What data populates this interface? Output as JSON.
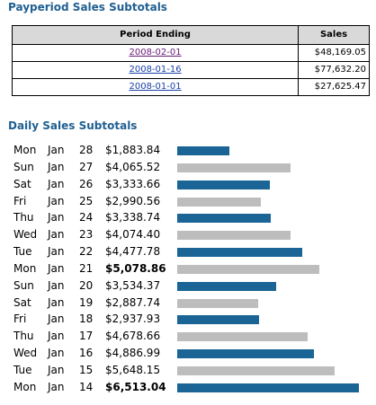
{
  "payperiod": {
    "title": "Payperiod Sales Subtotals",
    "headers": {
      "period": "Period Ending",
      "sales": "Sales"
    },
    "rows": [
      {
        "date": "2008-02-01",
        "sales": "$48,169.05",
        "visited": true
      },
      {
        "date": "2008-01-16",
        "sales": "$77,632.20",
        "visited": false
      },
      {
        "date": "2008-01-01",
        "sales": "$27,625.47",
        "visited": false
      }
    ]
  },
  "daily": {
    "title": "Daily Sales Subtotals",
    "max_value": 6513.04,
    "rows": [
      {
        "dow": "Mon",
        "mon": "Jan",
        "day": "28",
        "amount": "$1,883.84",
        "value": 1883.84,
        "bold": false
      },
      {
        "dow": "Sun",
        "mon": "Jan",
        "day": "27",
        "amount": "$4,065.52",
        "value": 4065.52,
        "bold": false
      },
      {
        "dow": "Sat",
        "mon": "Jan",
        "day": "26",
        "amount": "$3,333.66",
        "value": 3333.66,
        "bold": false
      },
      {
        "dow": "Fri",
        "mon": "Jan",
        "day": "25",
        "amount": "$2,990.56",
        "value": 2990.56,
        "bold": false
      },
      {
        "dow": "Thu",
        "mon": "Jan",
        "day": "24",
        "amount": "$3,338.74",
        "value": 3338.74,
        "bold": false
      },
      {
        "dow": "Wed",
        "mon": "Jan",
        "day": "23",
        "amount": "$4,074.40",
        "value": 4074.4,
        "bold": false
      },
      {
        "dow": "Tue",
        "mon": "Jan",
        "day": "22",
        "amount": "$4,477.78",
        "value": 4477.78,
        "bold": false
      },
      {
        "dow": "Mon",
        "mon": "Jan",
        "day": "21",
        "amount": "$5,078.86",
        "value": 5078.86,
        "bold": true
      },
      {
        "dow": "Sun",
        "mon": "Jan",
        "day": "20",
        "amount": "$3,534.37",
        "value": 3534.37,
        "bold": false
      },
      {
        "dow": "Sat",
        "mon": "Jan",
        "day": "19",
        "amount": "$2,887.74",
        "value": 2887.74,
        "bold": false
      },
      {
        "dow": "Fri",
        "mon": "Jan",
        "day": "18",
        "amount": "$2,937.93",
        "value": 2937.93,
        "bold": false
      },
      {
        "dow": "Thu",
        "mon": "Jan",
        "day": "17",
        "amount": "$4,678.66",
        "value": 4678.66,
        "bold": false
      },
      {
        "dow": "Wed",
        "mon": "Jan",
        "day": "16",
        "amount": "$4,886.99",
        "value": 4886.99,
        "bold": false
      },
      {
        "dow": "Tue",
        "mon": "Jan",
        "day": "15",
        "amount": "$5,648.15",
        "value": 5648.15,
        "bold": false
      },
      {
        "dow": "Mon",
        "mon": "Jan",
        "day": "14",
        "amount": "$6,513.04",
        "value": 6513.04,
        "bold": true
      }
    ]
  },
  "colors": {
    "title": "#1f5f91",
    "bar_primary": "#1a6496",
    "bar_secondary": "#bdbdbd",
    "link": "#1a3fa8",
    "link_visited": "#6a1c7a",
    "header_bg": "#d9d9d9"
  }
}
